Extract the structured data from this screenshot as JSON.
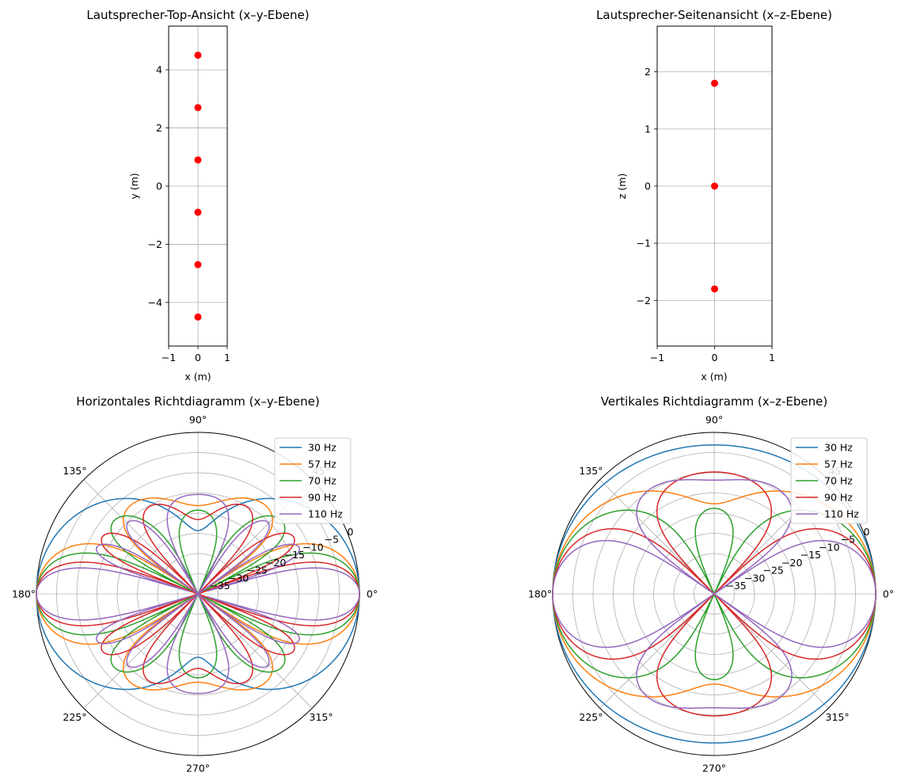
{
  "chart_data": [
    {
      "type": "scatter",
      "title": "Lautsprecher-Top-Ansicht (x–y-Ebene)",
      "xlabel": "x (m)",
      "ylabel": "y (m)",
      "xlim": [
        -1,
        1
      ],
      "ylim": [
        -5.5,
        5.5
      ],
      "xticks": [
        "−1",
        "0",
        "1"
      ],
      "yticks": [
        "−4",
        "−2",
        "0",
        "2",
        "4"
      ],
      "grid": true,
      "marker_color": "#ff0000",
      "points": [
        [
          0,
          4.5
        ],
        [
          0,
          2.7
        ],
        [
          0,
          0.9
        ],
        [
          0,
          -0.9
        ],
        [
          0,
          -2.7
        ],
        [
          0,
          -4.5
        ]
      ]
    },
    {
      "type": "scatter",
      "title": "Lautsprecher-Seitenansicht (x–z-Ebene)",
      "xlabel": "x (m)",
      "ylabel": "z (m)",
      "xlim": [
        -1,
        1
      ],
      "ylim": [
        -2.8,
        2.8
      ],
      "xticks": [
        "−1",
        "0",
        "1"
      ],
      "yticks": [
        "−2",
        "−1",
        "0",
        "1",
        "2"
      ],
      "grid": true,
      "marker_color": "#ff0000",
      "points": [
        [
          0,
          1.8
        ],
        [
          0,
          0
        ],
        [
          0,
          -1.8
        ]
      ]
    },
    {
      "type": "polar-line",
      "title": "Horizontales Richtdiagramm (x–y-Ebene)",
      "angle_ticks": [
        "0°",
        "45°",
        "90°",
        "135°",
        "180°",
        "225°",
        "270°",
        "315°"
      ],
      "r_ticks": [
        "−35",
        "−30",
        "−25",
        "−20",
        "−15",
        "−10",
        "−5",
        "0"
      ],
      "r_range_db": [
        -40,
        0
      ],
      "legend_position": "upper right",
      "series": [
        {
          "name": "30 Hz",
          "color": "#1f77b4",
          "array_length_m": 9.0,
          "spacing_m": 1.8,
          "count": 6
        },
        {
          "name": "57 Hz",
          "color": "#ff7f0e",
          "array_length_m": 9.0,
          "spacing_m": 1.8,
          "count": 6
        },
        {
          "name": "70 Hz",
          "color": "#2ca02c",
          "array_length_m": 9.0,
          "spacing_m": 1.8,
          "count": 6
        },
        {
          "name": "90 Hz",
          "color": "#d62728",
          "array_length_m": 9.0,
          "spacing_m": 1.8,
          "count": 6
        },
        {
          "name": "110 Hz",
          "color": "#9467bd",
          "array_length_m": 9.0,
          "spacing_m": 1.8,
          "count": 6
        }
      ]
    },
    {
      "type": "polar-line",
      "title": "Vertikales Richtdiagramm (x–z-Ebene)",
      "angle_ticks": [
        "0°",
        "45°",
        "90°",
        "135°",
        "180°",
        "225°",
        "270°",
        "315°"
      ],
      "r_ticks": [
        "−35",
        "−30",
        "−25",
        "−20",
        "−15",
        "−10",
        "−5",
        "0"
      ],
      "r_range_db": [
        -40,
        0
      ],
      "legend_position": "upper right",
      "series": [
        {
          "name": "30 Hz",
          "color": "#1f77b4",
          "spacing_m": 1.8,
          "count": 3
        },
        {
          "name": "57 Hz",
          "color": "#ff7f0e",
          "spacing_m": 1.8,
          "count": 3
        },
        {
          "name": "70 Hz",
          "color": "#2ca02c",
          "spacing_m": 1.8,
          "count": 3
        },
        {
          "name": "90 Hz",
          "color": "#d62728",
          "spacing_m": 1.8,
          "count": 3
        },
        {
          "name": "110 Hz",
          "color": "#9467bd",
          "spacing_m": 1.8,
          "count": 3
        }
      ]
    }
  ]
}
